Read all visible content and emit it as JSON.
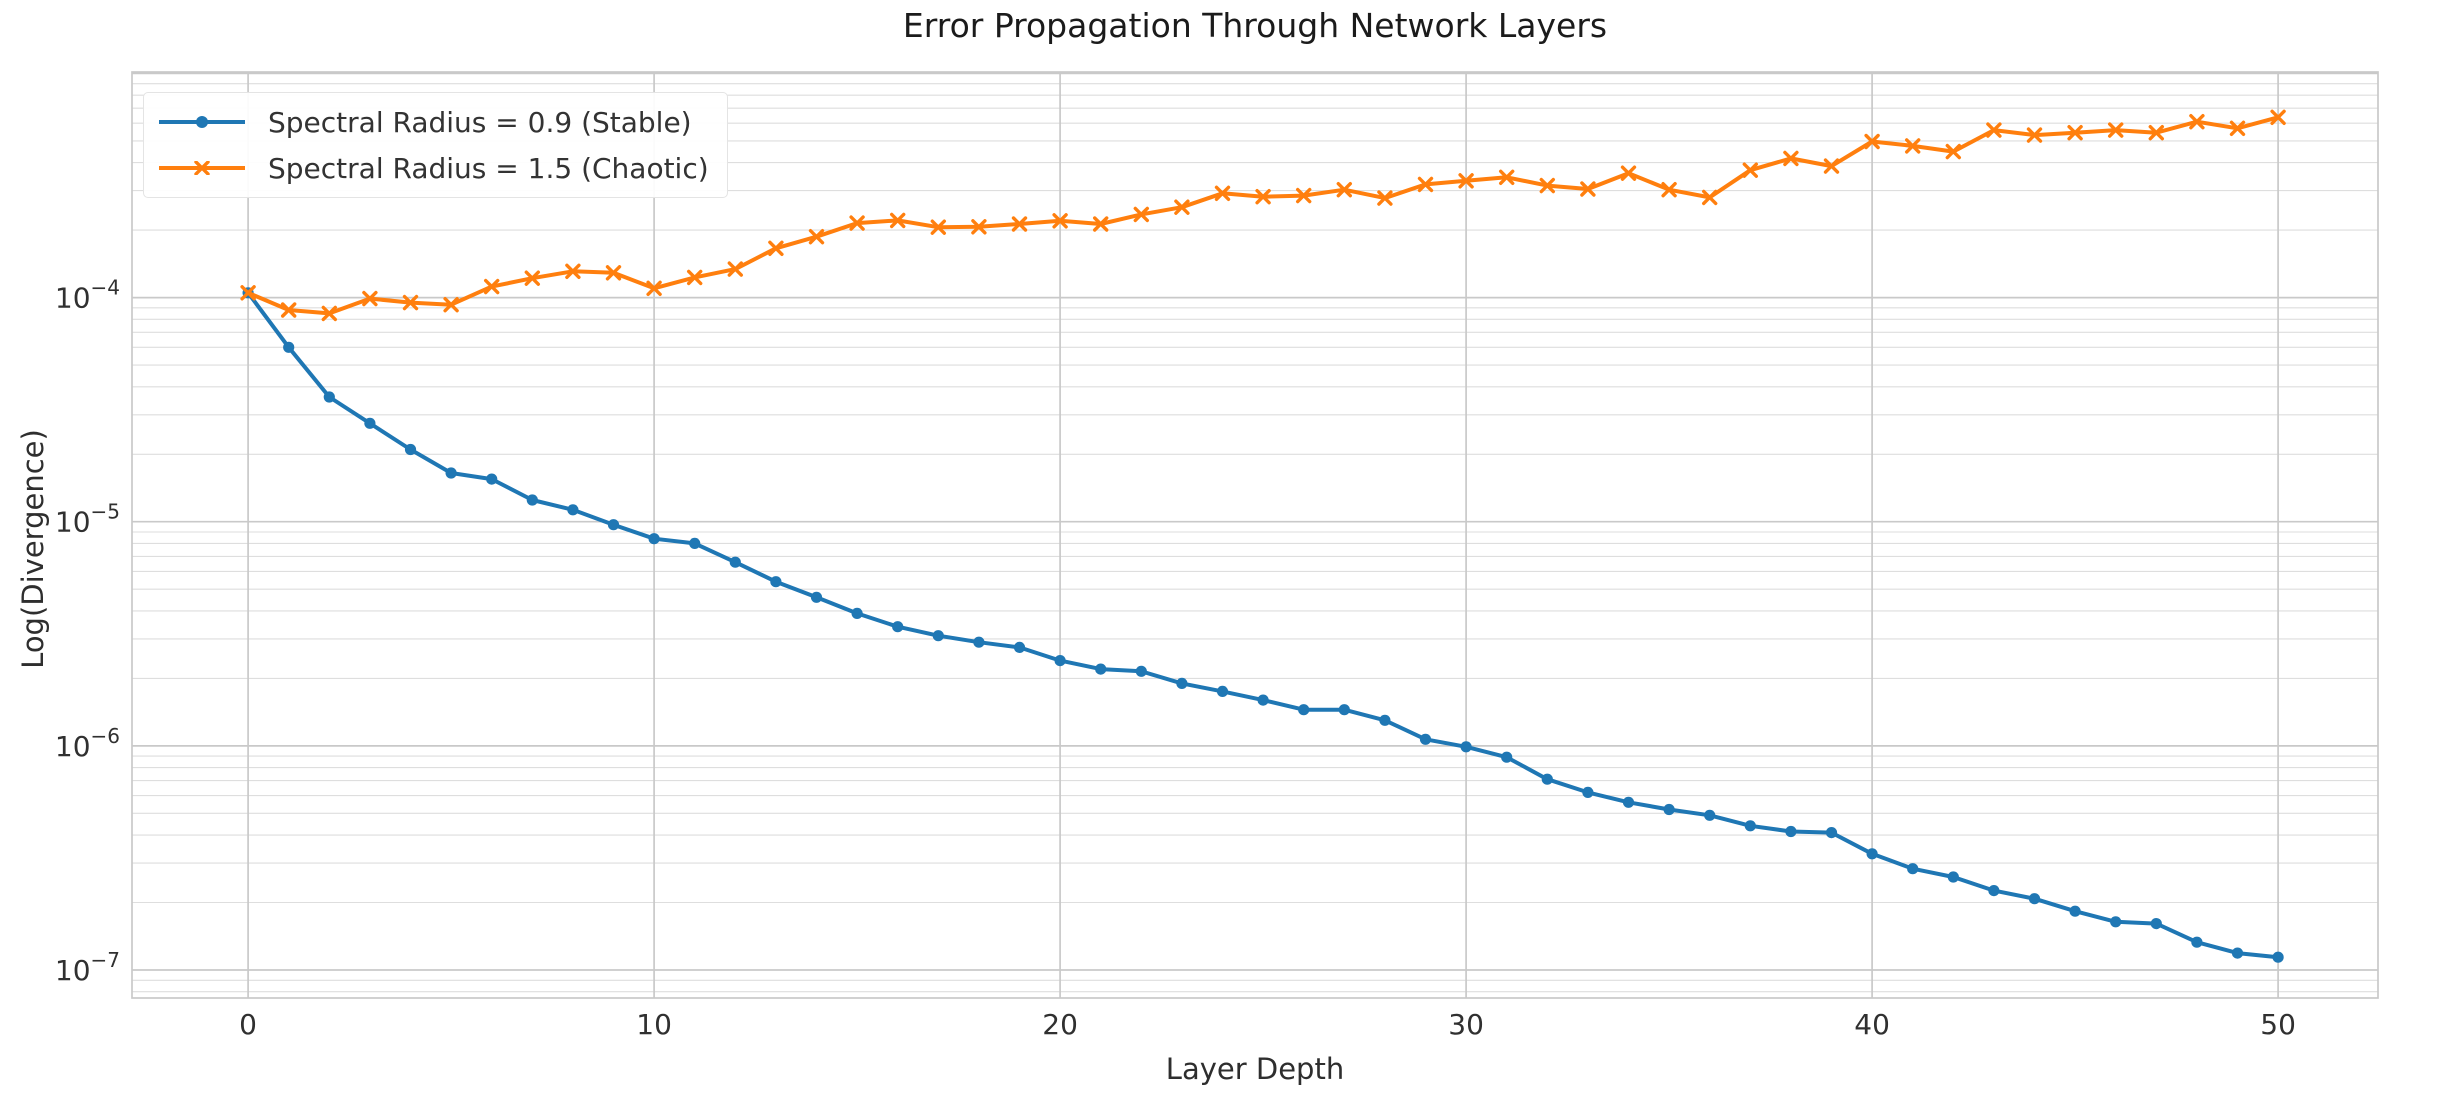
{
  "title": "Error Propagation Through Network Layers",
  "axes": {
    "xlabel": "Layer Depth",
    "ylabel": "Log(Divergence)"
  },
  "legend": {
    "stable_label": "Spectral Radius = 0.9 (Stable)",
    "chaotic_label": "Spectral Radius = 1.5 (Chaotic)"
  },
  "colors": {
    "stable": "#1f77b4",
    "chaotic": "#ff7f0e",
    "grid_major": "#c9c9c9",
    "grid_minor": "#dedede",
    "spine": "#c9c9c9",
    "text": "#303030"
  },
  "chart_data": {
    "type": "line",
    "title": "Error Propagation Through Network Layers",
    "xlabel": "Layer Depth",
    "ylabel": "Log(Divergence)",
    "yscale": "log",
    "grid": true,
    "legend_position": "upper-left",
    "xlim": [
      -2.86,
      52.46
    ],
    "ylim": [
      7.5e-08,
      0.001015
    ],
    "x_ticks": [
      0,
      10,
      20,
      30,
      40,
      50
    ],
    "y_ticks": [
      "10⁻⁴",
      "10⁻⁵",
      "10⁻⁶",
      "10⁻⁷"
    ],
    "y_tick_exponents": [
      -4,
      -5,
      -6,
      -7
    ],
    "x": [
      0,
      1,
      2,
      3,
      4,
      5,
      6,
      7,
      8,
      9,
      10,
      11,
      12,
      13,
      14,
      15,
      16,
      17,
      18,
      19,
      20,
      21,
      22,
      23,
      24,
      25,
      26,
      27,
      28,
      29,
      30,
      31,
      32,
      33,
      34,
      35,
      36,
      37,
      38,
      39,
      40,
      41,
      42,
      43,
      44,
      45,
      46,
      47,
      48,
      49,
      50
    ],
    "series": [
      {
        "name": "Spectral Radius = 0.9 (Stable)",
        "color": "#1f77b4",
        "marker": "circle",
        "values": [
          0.000105,
          6e-05,
          3.6e-05,
          2.75e-05,
          2.1e-05,
          1.65e-05,
          1.55e-05,
          1.25e-05,
          1.13e-05,
          9.7e-06,
          8.4e-06,
          8e-06,
          6.6e-06,
          5.4e-06,
          4.6e-06,
          3.9e-06,
          3.4e-06,
          3.1e-06,
          2.9e-06,
          2.75e-06,
          2.4e-06,
          2.2e-06,
          2.15e-06,
          1.9e-06,
          1.75e-06,
          1.6e-06,
          1.45e-06,
          1.45e-06,
          1.3e-06,
          1.07e-06,
          9.9e-07,
          8.9e-07,
          7.1e-07,
          6.2e-07,
          5.6e-07,
          5.2e-07,
          4.9e-07,
          4.4e-07,
          4.15e-07,
          4.1e-07,
          3.3e-07,
          2.83e-07,
          2.6e-07,
          2.26e-07,
          2.08e-07,
          1.83e-07,
          1.64e-07,
          1.61e-07,
          1.33e-07,
          1.19e-07,
          1.14e-07
        ]
      },
      {
        "name": "Spectral Radius = 1.5 (Chaotic)",
        "color": "#ff7f0e",
        "marker": "x",
        "values": [
          0.000105,
          8.8e-05,
          8.5e-05,
          9.9e-05,
          9.5e-05,
          9.3e-05,
          0.000112,
          0.000122,
          0.000131,
          0.000129,
          0.00011,
          0.000123,
          0.000134,
          0.000166,
          0.000187,
          0.000215,
          0.000221,
          0.000206,
          0.000207,
          0.000213,
          0.00022,
          0.000213,
          0.000235,
          0.000253,
          0.000292,
          0.000282,
          0.000285,
          0.000303,
          0.000278,
          0.00032,
          0.000332,
          0.000344,
          0.000316,
          0.000305,
          0.000359,
          0.000303,
          0.00028,
          0.00037,
          0.000418,
          0.000386,
          0.000497,
          0.000475,
          0.000448,
          0.000559,
          0.000531,
          0.000544,
          0.000559,
          0.000544,
          0.000609,
          0.000569,
          0.000637
        ]
      }
    ]
  }
}
